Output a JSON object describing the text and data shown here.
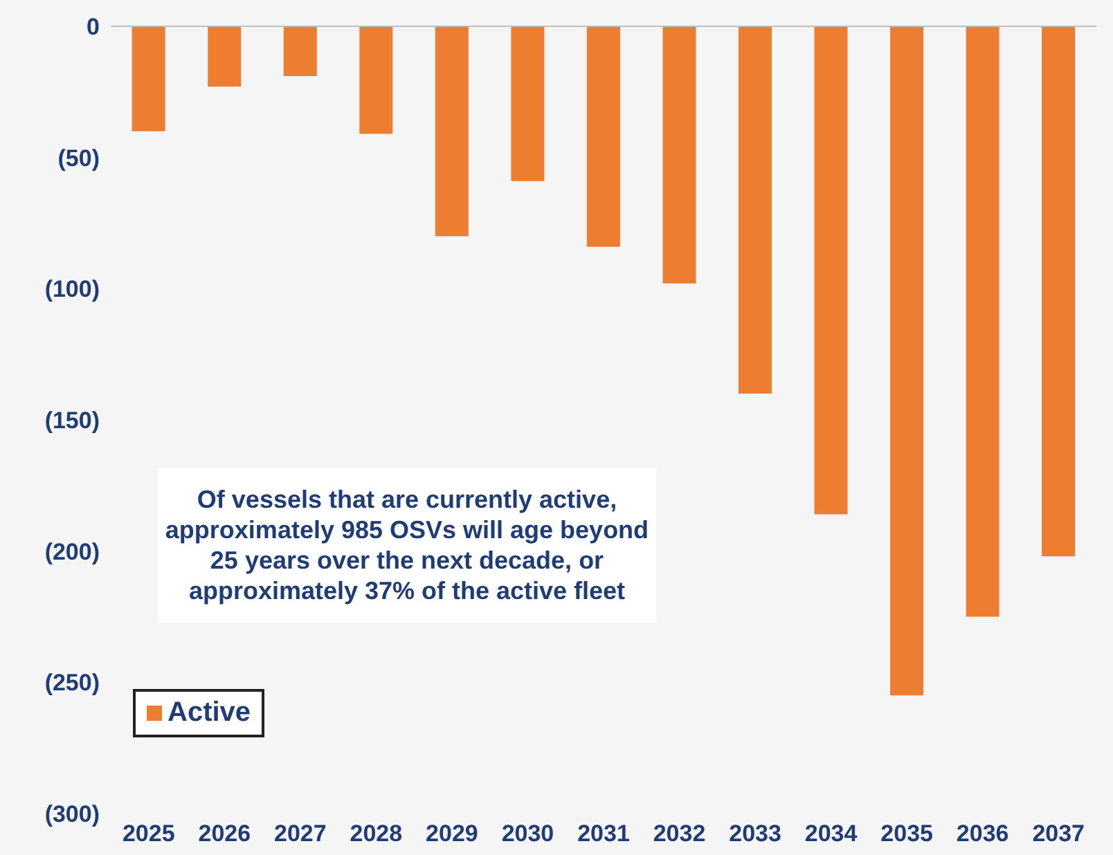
{
  "chart_data": {
    "type": "bar",
    "categories": [
      "2025",
      "2026",
      "2027",
      "2028",
      "2029",
      "2030",
      "2031",
      "2032",
      "2033",
      "2034",
      "2035",
      "2036",
      "2037"
    ],
    "series": [
      {
        "name": "Active",
        "color": "#ed7d31",
        "values": [
          -40,
          -23,
          -19,
          -41,
          -80,
          -59,
          -84,
          -98,
          -140,
          -186,
          -255,
          -225,
          -202
        ]
      }
    ],
    "ylim": [
      -300,
      0
    ],
    "yticks": [
      0,
      {
        "value": -50,
        "label": "(50)"
      },
      {
        "value": -100,
        "label": "(100)"
      },
      {
        "value": -150,
        "label": "(150)"
      },
      {
        "value": -200,
        "label": "(200)"
      },
      {
        "value": -250,
        "label": "(250)"
      },
      {
        "value": -300,
        "label": "(300)"
      }
    ],
    "grid": false,
    "legend": "bottom left",
    "annotations": [
      "Of vessels that are currently active, approximately 985 OSVs will age beyond 25 years over the next decade, or approximately 37% of the active fleet"
    ]
  }
}
